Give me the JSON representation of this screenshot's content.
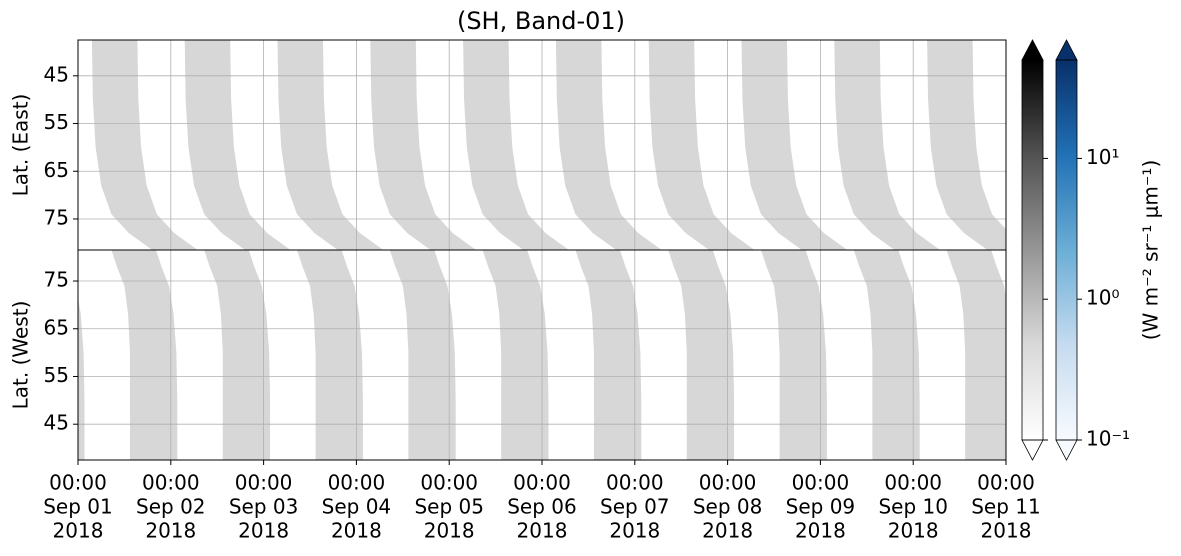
{
  "chart_data": {
    "type": "heatmap",
    "title": "(SH, Band-01)",
    "xlim": [
      "2018-09-01T00:00",
      "2018-09-11T00:00"
    ],
    "xticks": [
      {
        "value": "2018-09-01T00:00",
        "label": [
          "00:00",
          "Sep 01",
          "2018"
        ]
      },
      {
        "value": "2018-09-02T00:00",
        "label": [
          "00:00",
          "Sep 02",
          "2018"
        ]
      },
      {
        "value": "2018-09-03T00:00",
        "label": [
          "00:00",
          "Sep 03",
          "2018"
        ]
      },
      {
        "value": "2018-09-04T00:00",
        "label": [
          "00:00",
          "Sep 04",
          "2018"
        ]
      },
      {
        "value": "2018-09-05T00:00",
        "label": [
          "00:00",
          "Sep 05",
          "2018"
        ]
      },
      {
        "value": "2018-09-06T00:00",
        "label": [
          "00:00",
          "Sep 06",
          "2018"
        ]
      },
      {
        "value": "2018-09-07T00:00",
        "label": [
          "00:00",
          "Sep 07",
          "2018"
        ]
      },
      {
        "value": "2018-09-08T00:00",
        "label": [
          "00:00",
          "Sep 08",
          "2018"
        ]
      },
      {
        "value": "2018-09-09T00:00",
        "label": [
          "00:00",
          "Sep 09",
          "2018"
        ]
      },
      {
        "value": "2018-09-10T00:00",
        "label": [
          "00:00",
          "Sep 10",
          "2018"
        ]
      },
      {
        "value": "2018-09-11T00:00",
        "label": [
          "00:00",
          "Sep 11",
          "2018"
        ]
      }
    ],
    "grid": true,
    "panels": [
      {
        "ylabel": "Lat. (East)",
        "ylim": [
          37.5,
          81.5
        ],
        "invert_y": true,
        "yticks": [
          45,
          55,
          65,
          75
        ],
        "lat": [
          37.5,
          50,
          60,
          68,
          74,
          78,
          81.5
        ],
        "start_days": [
          0.15,
          0.16,
          0.19,
          0.25,
          0.36,
          0.55,
          0.8
        ],
        "end_days": [
          0.64,
          0.65,
          0.68,
          0.74,
          0.85,
          1.04,
          1.29
        ],
        "value": 0.5,
        "passes": [
          "2018-09-01T00:00",
          "2018-09-02T00:00",
          "2018-09-03T00:00",
          "2018-09-04T00:00",
          "2018-09-05T00:00",
          "2018-09-06T00:00",
          "2018-09-07T00:00",
          "2018-09-08T00:00",
          "2018-09-09T00:00",
          "2018-09-10T00:00"
        ]
      },
      {
        "ylabel": "Lat. (West)",
        "ylim": [
          37.5,
          81.5
        ],
        "invert_y": false,
        "yticks": [
          45,
          55,
          65,
          75
        ],
        "lat": [
          37.5,
          50,
          60,
          68,
          74,
          78,
          81.5
        ],
        "start_days": [
          0.56,
          0.56,
          0.56,
          0.54,
          0.5,
          0.42,
          0.36
        ],
        "end_days": [
          1.07,
          1.07,
          1.06,
          1.03,
          0.98,
          0.9,
          0.84
        ],
        "value": 0.5,
        "passes": [
          "2018-08-31T00:00",
          "2018-09-01T00:00",
          "2018-09-02T00:00",
          "2018-09-03T00:00",
          "2018-09-04T00:00",
          "2018-09-05T00:00",
          "2018-09-06T00:00",
          "2018-09-07T00:00",
          "2018-09-08T00:00",
          "2018-09-09T00:00",
          "2018-09-10T00:00"
        ]
      }
    ],
    "colorbar": {
      "label": "(W m⁻² sr⁻¹ μm⁻¹)",
      "log": true,
      "clim": [
        0.1,
        50
      ],
      "extend": "both",
      "ticks": [
        {
          "value": 0.1,
          "label": "10⁻¹"
        },
        {
          "value": 1,
          "label": "10⁰"
        },
        {
          "value": 10,
          "label": "10¹"
        }
      ],
      "cmaps": [
        [
          "#ffffff",
          "#d9d9d9",
          "#969696",
          "#525252",
          "#000000"
        ],
        [
          "#f7fbff",
          "#c6dbef",
          "#6baed6",
          "#2171b5",
          "#08306b"
        ]
      ]
    }
  }
}
